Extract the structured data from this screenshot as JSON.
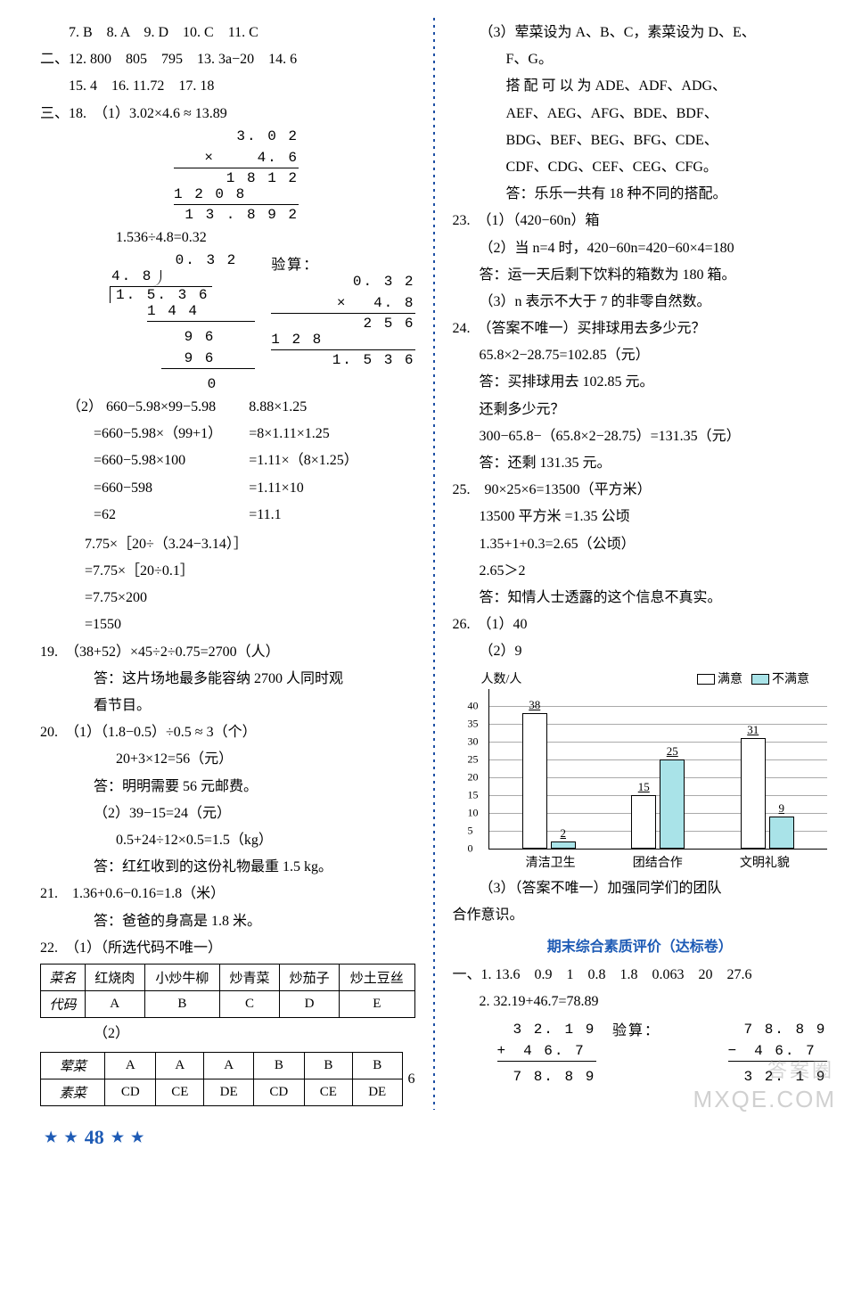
{
  "left": {
    "q7_11": "　　7. B　8. A　9. D　10. C　11. C",
    "sec2": "二、12. 800　805　795　13. 3a−20　14. 6",
    "q15_17": "　　15. 4　16. 11.72　17. 18",
    "sec3_18_1": "三、18.　（1）3.02×4.6 ≈ 13.89",
    "mult1": [
      "3. 0 2",
      "×　　 4. 6",
      "1 8 1 2",
      "1 2 0 8",
      "1 3 . 8 9 2"
    ],
    "div_intro": "1.536÷4.8=0.32",
    "div_quot": "0. 3 2",
    "div_divisor": "4. 8",
    "div_dividend": "1. 5. 3 6",
    "div_rows": [
      "1 4 4",
      "　 9 6",
      "　 9 6",
      "　　 0"
    ],
    "verify_label": "验算：",
    "verify": [
      "0. 3 2",
      "×　 4. 8",
      "2 5 6",
      "1 2 8",
      "1. 5 3 6"
    ],
    "q18_2_left": [
      "（2） 660−5.98×99−5.98",
      "=660−5.98×（99+1）",
      "=660−5.98×100",
      "=660−598",
      "=62"
    ],
    "q18_2_right": [
      "8.88×1.25",
      "=8×1.11×1.25",
      "=1.11×（8×1.25）",
      "=1.11×10",
      "=11.1"
    ],
    "q18_2b": [
      "7.75×［20÷（3.24−3.14）］",
      "=7.75×［20÷0.1］",
      "=7.75×200",
      "=1550"
    ],
    "q19": [
      "19.　（38+52）×45÷2÷0.75=2700（人）",
      "答：这片场地最多能容纳 2700 人同时观",
      "看节目。"
    ],
    "q20": [
      "20.　（1）（1.8−0.5）÷0.5 ≈ 3（个）",
      "20+3×12=56（元）",
      "答：明明需要 56 元邮费。",
      "（2）39−15=24（元）",
      "0.5+24÷12×0.5=1.5（kg）",
      "答：红红收到的这份礼物最重 1.5 kg。"
    ],
    "q21": [
      "21.　1.36+0.6−0.16=1.8（米）",
      "答：爸爸的身高是 1.8 米。"
    ],
    "q22_1": "22.　（1）（所选代码不唯一）",
    "table1": {
      "header": [
        "菜名",
        "红烧肉",
        "小炒牛柳",
        "炒青菜",
        "炒茄子",
        "炒土豆丝"
      ],
      "row": [
        "代码",
        "A",
        "B",
        "C",
        "D",
        "E"
      ]
    },
    "q22_2": "（2）",
    "table2": {
      "r1": [
        "荤菜",
        "A",
        "A",
        "A",
        "B",
        "B",
        "B"
      ],
      "r2": [
        "素菜",
        "CD",
        "CE",
        "DE",
        "CD",
        "CE",
        "DE"
      ]
    },
    "six": "6"
  },
  "right": {
    "q22_3": [
      "（3）荤菜设为 A、B、C，素菜设为 D、E、",
      "F、G。",
      "搭 配 可 以 为 ADE、ADF、ADG、",
      "AEF、AEG、AFG、BDE、BDF、",
      "BDG、BEF、BEG、BFG、CDE、",
      "CDF、CDG、CEF、CEG、CFG。",
      "答：乐乐一共有 18 种不同的搭配。"
    ],
    "q23": [
      "23.　（1）（420−60n）箱",
      "（2）当 n=4 时，420−60n=420−60×4=180",
      "答：运一天后剩下饮料的箱数为 180 箱。",
      "（3）n 表示不大于 7 的非零自然数。"
    ],
    "q24": [
      "24.　（答案不唯一）买排球用去多少元？",
      "65.8×2−28.75=102.85（元）",
      "答：买排球用去 102.85 元。",
      "还剩多少元？",
      "300−65.8−（65.8×2−28.75）=131.35（元）",
      "答：还剩 131.35 元。"
    ],
    "q25": [
      "25.　90×25×6=13500（平方米）",
      "13500 平方米 =1.35 公顷",
      "1.35+1+0.3=2.65（公顷）",
      "2.65＞2",
      "答：知情人士透露的这个信息不真实。"
    ],
    "q26_1": "26.　（1）40",
    "q26_2": "（2）9",
    "chart": {
      "ylabel": "人数/人",
      "ymax": 40,
      "ystep": 5,
      "legend": [
        "满意",
        "不满意"
      ],
      "colors": [
        "#ffffff",
        "#a9e3e8"
      ],
      "categories": [
        "清洁卫生",
        "团结合作",
        "文明礼貌"
      ],
      "series": [
        [
          38,
          2
        ],
        [
          15,
          25
        ],
        [
          31,
          9
        ]
      ]
    },
    "q26_3": [
      "（3）（答案不唯一）加强同学们的团队",
      "合作意识。"
    ],
    "heading": "期末综合素质评价（达标卷）",
    "sec1": "一、1. 13.6　0.9　1　0.8　1.8　0.063　20　27.6",
    "q2": "2. 32.19+46.7=78.89",
    "add_left": [
      "　3 2. 1 9",
      "+　4 6. 7",
      "　7 8. 8 9"
    ],
    "add_label": "验算：",
    "add_right": [
      "　7 8. 8 9",
      "−　4 6. 7",
      "　3 2. 1 9"
    ]
  },
  "footer": {
    "page": "48"
  },
  "wm1": "答案圈",
  "wm2": "MXQE.COM"
}
